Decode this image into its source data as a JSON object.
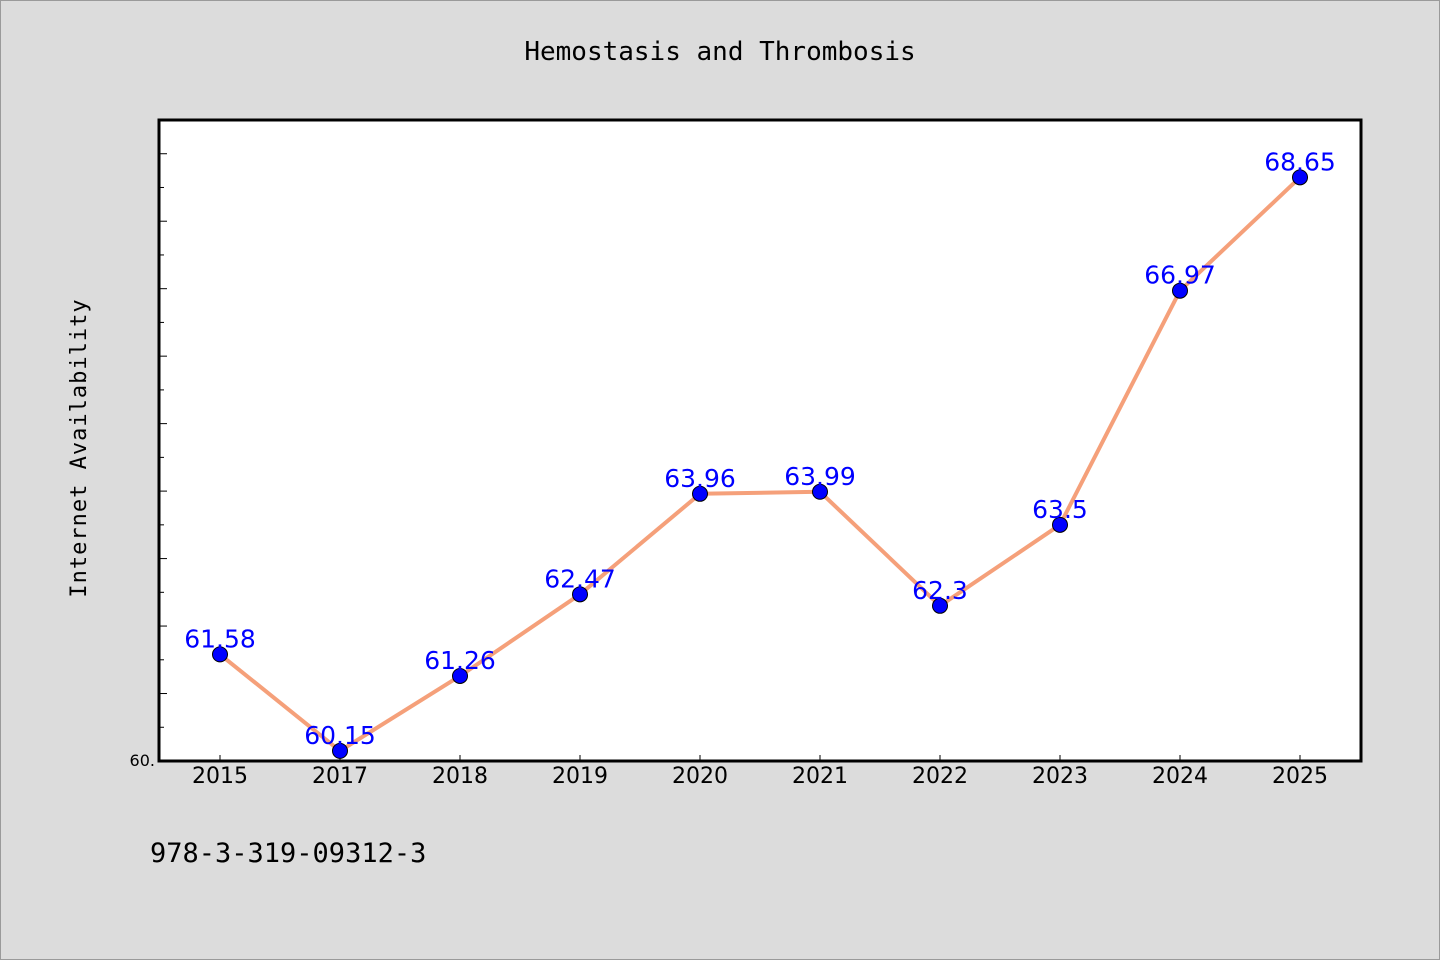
{
  "chart_data": {
    "type": "line",
    "title": "Hemostasis and Thrombosis",
    "xlabel": "",
    "ylabel": "Internet Availability",
    "categories": [
      "2015",
      "2017",
      "2018",
      "2019",
      "2020",
      "2021",
      "2022",
      "2023",
      "2024",
      "2025"
    ],
    "series": [
      {
        "values": [
          61.58,
          60.15,
          61.26,
          62.47,
          63.96,
          63.99,
          62.3,
          63.5,
          66.97,
          68.65
        ],
        "labels": [
          "61.58",
          "60.15",
          "61.26",
          "62.47",
          "63.96",
          "63.99",
          "62.3",
          "63.5",
          "66.97",
          "68.65"
        ]
      }
    ],
    "ylim": [
      60.0,
      69.5
    ],
    "y_tick_label": "60.",
    "grid": false,
    "line_color": "#f5a07a",
    "marker_color": "#0000ff",
    "label_color": "#0000ff"
  },
  "footer_text": "978-3-319-09312-3"
}
